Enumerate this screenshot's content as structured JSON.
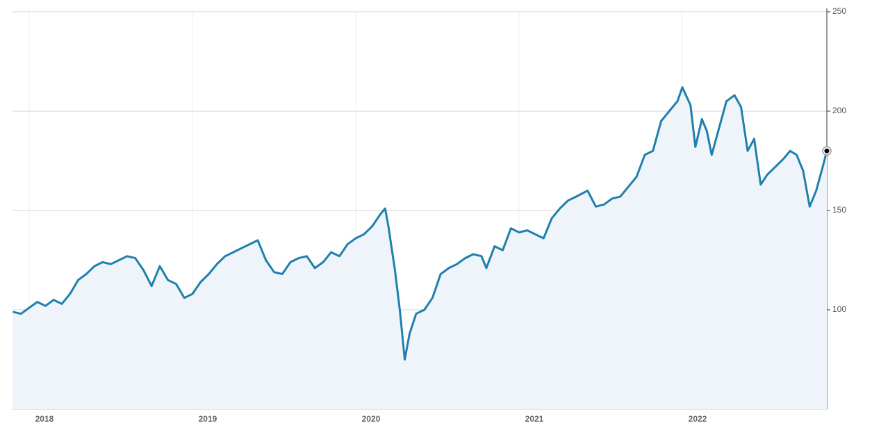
{
  "chart_data": {
    "type": "area",
    "x": [
      2017.9,
      2017.95,
      2018.0,
      2018.05,
      2018.1,
      2018.15,
      2018.2,
      2018.25,
      2018.3,
      2018.35,
      2018.4,
      2018.45,
      2018.5,
      2018.55,
      2018.6,
      2018.65,
      2018.7,
      2018.75,
      2018.8,
      2018.85,
      2018.9,
      2018.95,
      2019.0,
      2019.05,
      2019.1,
      2019.15,
      2019.2,
      2019.25,
      2019.3,
      2019.35,
      2019.4,
      2019.45,
      2019.5,
      2019.55,
      2019.6,
      2019.65,
      2019.7,
      2019.75,
      2019.8,
      2019.85,
      2019.9,
      2019.95,
      2020.0,
      2020.05,
      2020.1,
      2020.15,
      2020.18,
      2020.2,
      2020.24,
      2020.27,
      2020.3,
      2020.33,
      2020.37,
      2020.42,
      2020.47,
      2020.52,
      2020.57,
      2020.62,
      2020.67,
      2020.72,
      2020.77,
      2020.8,
      2020.85,
      2020.9,
      2020.95,
      2021.0,
      2021.05,
      2021.1,
      2021.15,
      2021.2,
      2021.25,
      2021.3,
      2021.35,
      2021.42,
      2021.47,
      2021.52,
      2021.57,
      2021.62,
      2021.67,
      2021.72,
      2021.77,
      2021.82,
      2021.87,
      2021.92,
      2021.97,
      2022.0,
      2022.05,
      2022.08,
      2022.12,
      2022.15,
      2022.18,
      2022.22,
      2022.27,
      2022.32,
      2022.36,
      2022.4,
      2022.44,
      2022.48,
      2022.52,
      2022.57,
      2022.62,
      2022.66,
      2022.7,
      2022.74,
      2022.78,
      2022.82,
      2022.86,
      2022.885
    ],
    "series": [
      {
        "color": "#1f7fad",
        "values": [
          99,
          98,
          101,
          104,
          102,
          105,
          103,
          108,
          115,
          118,
          122,
          124,
          123,
          125,
          127,
          126,
          120,
          112,
          122,
          115,
          113,
          106,
          108,
          114,
          118,
          123,
          127,
          129,
          131,
          133,
          135,
          125,
          119,
          118,
          124,
          126,
          127,
          121,
          124,
          129,
          127,
          133,
          136,
          138,
          142,
          148,
          151,
          142,
          120,
          100,
          75,
          88,
          98,
          100,
          106,
          118,
          121,
          123,
          126,
          128,
          127,
          121,
          132,
          130,
          141,
          139,
          140,
          138,
          136,
          146,
          151,
          155,
          157,
          160,
          152,
          153,
          156,
          157,
          162,
          167,
          178,
          180,
          195,
          200,
          205,
          212,
          203,
          182,
          196,
          190,
          178,
          190,
          205,
          208,
          202,
          180,
          186,
          163,
          168,
          172,
          176,
          180,
          178,
          170,
          152,
          160,
          172,
          180
        ]
      }
    ],
    "xlim": [
      2017.898,
      2022.885
    ],
    "xticks": [
      2018,
      2019,
      2020,
      2021,
      2022
    ],
    "ylim": [
      50,
      250
    ],
    "yticks": [
      100,
      150,
      200,
      250
    ],
    "fill": "#eef4fa",
    "grid": true
  }
}
